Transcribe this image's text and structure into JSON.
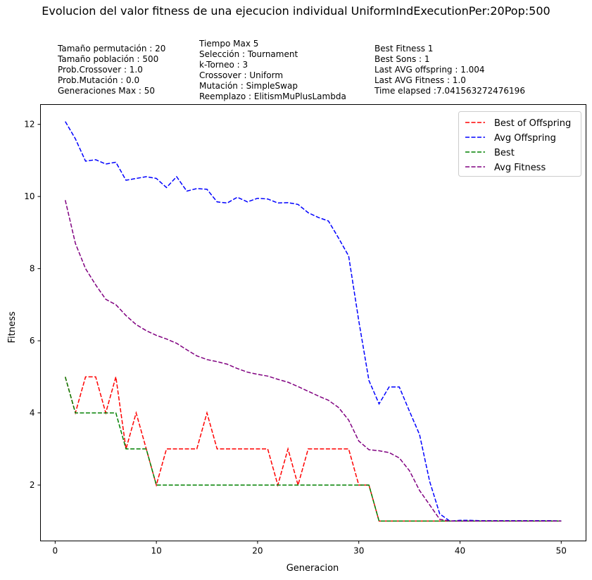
{
  "chart_data": {
    "type": "line",
    "title": "Evolucion del valor fitness de una ejecucion individual UniformIndExecutionPer:20Pop:500",
    "xlabel": "Generacion",
    "ylabel": "Fitness",
    "xlim": [
      -1.45,
      52.45
    ],
    "ylim": [
      0.45,
      12.55
    ],
    "xticks": [
      0,
      10,
      20,
      30,
      40,
      50
    ],
    "yticks": [
      2,
      4,
      6,
      8,
      10,
      12
    ],
    "legend": "top-right",
    "grid": false,
    "info_col1": [
      "Tamaño permutación : 20",
      "Tamaño población : 500",
      "Prob.Crossover : 1.0",
      "Prob.Mutación : 0.0",
      "Generaciones Max : 50"
    ],
    "info_col2": [
      "Tiempo Max 5",
      "Selección : Tournament",
      "k-Torneo : 3",
      "Crossover : Uniform",
      "Mutación : SimpleSwap",
      "Reemplazo : ElitismMuPlusLambda"
    ],
    "info_col3": [
      "Best Fitness 1",
      "Best Sons : 1",
      "Last AVG offspring : 1.004",
      "Last AVG Fitness : 1.0",
      "Time elapsed :7.041563272476196"
    ],
    "x": [
      1,
      2,
      3,
      4,
      5,
      6,
      7,
      8,
      9,
      10,
      11,
      12,
      13,
      14,
      15,
      16,
      17,
      18,
      19,
      20,
      21,
      22,
      23,
      24,
      25,
      26,
      27,
      28,
      29,
      30,
      31,
      32,
      33,
      34,
      35,
      36,
      37,
      38,
      39,
      40,
      41,
      42,
      43,
      44,
      45,
      46,
      47,
      48,
      49,
      50
    ],
    "series": [
      {
        "name": "Best of Offspring",
        "color": "#ff0000",
        "values": [
          5,
          4,
          5,
          5,
          4,
          5,
          3,
          4,
          3,
          2,
          3,
          3,
          3,
          3,
          4,
          3,
          3,
          3,
          3,
          3,
          3,
          2,
          3,
          2,
          3,
          3,
          3,
          3,
          3,
          2,
          2,
          1,
          1,
          1,
          1,
          1,
          1,
          1,
          1,
          1,
          1,
          1,
          1,
          1,
          1,
          1,
          1,
          1,
          1,
          1
        ]
      },
      {
        "name": "Avg Offspring",
        "color": "#0000ff",
        "values": [
          12.08,
          11.6,
          10.98,
          11.02,
          10.9,
          10.95,
          10.45,
          10.5,
          10.55,
          10.5,
          10.25,
          10.55,
          10.15,
          10.22,
          10.2,
          9.85,
          9.82,
          9.98,
          9.85,
          9.95,
          9.93,
          9.82,
          9.83,
          9.78,
          9.55,
          9.42,
          9.32,
          8.85,
          8.35,
          6.55,
          4.9,
          4.25,
          4.72,
          4.72,
          4.05,
          3.4,
          2.1,
          1.2,
          1.0,
          1.02,
          1.02,
          1.01,
          1.01,
          1.01,
          1.01,
          1.01,
          1.01,
          1.01,
          1.01,
          1.004
        ]
      },
      {
        "name": "Best",
        "color": "#008000",
        "values": [
          5,
          4,
          4,
          4,
          4,
          4,
          3,
          3,
          3,
          2,
          2,
          2,
          2,
          2,
          2,
          2,
          2,
          2,
          2,
          2,
          2,
          2,
          2,
          2,
          2,
          2,
          2,
          2,
          2,
          2,
          2,
          1,
          1,
          1,
          1,
          1,
          1,
          1,
          1,
          1,
          1,
          1,
          1,
          1,
          1,
          1,
          1,
          1,
          1,
          1
        ]
      },
      {
        "name": "Avg Fitness",
        "color": "#800080",
        "values": [
          9.9,
          8.7,
          8.0,
          7.55,
          7.15,
          7.0,
          6.7,
          6.45,
          6.28,
          6.15,
          6.05,
          5.93,
          5.75,
          5.58,
          5.48,
          5.42,
          5.35,
          5.23,
          5.13,
          5.07,
          5.02,
          4.93,
          4.85,
          4.73,
          4.6,
          4.47,
          4.35,
          4.15,
          3.8,
          3.22,
          2.98,
          2.95,
          2.9,
          2.75,
          2.4,
          1.85,
          1.45,
          1.05,
          1.0,
          1.0,
          1.0,
          1.0,
          1.0,
          1.0,
          1.0,
          1.0,
          1.0,
          1.0,
          1.0,
          1.0
        ]
      }
    ]
  }
}
